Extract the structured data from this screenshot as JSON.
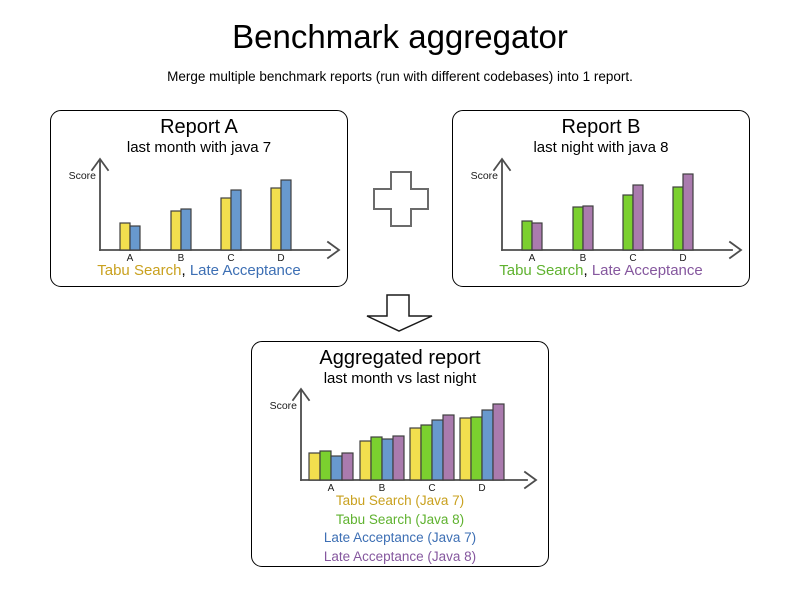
{
  "header": {
    "title": "Benchmark aggregator",
    "subtitle": "Merge multiple benchmark reports (run with different codebases) into 1 report."
  },
  "legend_separator": ", ",
  "icons": {
    "plus_icon": "plus",
    "merge_arrow_icon": "arrow-down"
  },
  "colors": {
    "axis": "#4d4d4d",
    "bar_border": "#3f3f3f",
    "box_border": "#000000",
    "plus_outline": "#6b6b6b",
    "arrow_outline": "#1a1a1a"
  },
  "chart_data": [
    {
      "id": "report-a",
      "type": "bar",
      "title": "Report A",
      "subtitle": "last month with java 7",
      "ylabel": "Score",
      "xlabel": "",
      "categories": [
        "A",
        "B",
        "C",
        "D"
      ],
      "ylim": [
        0,
        90
      ],
      "grid": false,
      "legend_position": "bottom",
      "series": [
        {
          "name": "Tabu Search",
          "color": "#F2DF4E",
          "label_color": "#C9A11F",
          "values": [
            27,
            39,
            52,
            62
          ]
        },
        {
          "name": "Late Acceptance",
          "color": "#6899CE",
          "label_color": "#3D6FB4",
          "values": [
            24,
            41,
            60,
            70
          ]
        }
      ]
    },
    {
      "id": "report-b",
      "type": "bar",
      "title": "Report B",
      "subtitle": "last night with java 8",
      "ylabel": "Score",
      "xlabel": "",
      "categories": [
        "A",
        "B",
        "C",
        "D"
      ],
      "ylim": [
        0,
        90
      ],
      "grid": false,
      "legend_position": "bottom",
      "series": [
        {
          "name": "Tabu Search",
          "color": "#7BD02F",
          "label_color": "#5FB22F",
          "values": [
            29,
            43,
            55,
            63
          ]
        },
        {
          "name": "Late Acceptance",
          "color": "#AA7BAE",
          "label_color": "#85579E",
          "values": [
            27,
            44,
            65,
            76
          ]
        }
      ]
    },
    {
      "id": "aggregated",
      "type": "bar",
      "title": "Aggregated report",
      "subtitle": "last month vs last night",
      "ylabel": "Score",
      "xlabel": "",
      "categories": [
        "A",
        "B",
        "C",
        "D"
      ],
      "ylim": [
        0,
        90
      ],
      "grid": false,
      "legend_position": "bottom",
      "series": [
        {
          "name": "Tabu Search (Java 7)",
          "color": "#F2DF4E",
          "label_color": "#C9A11F",
          "values": [
            27,
            39,
            52,
            62
          ]
        },
        {
          "name": "Tabu Search (Java 8)",
          "color": "#7BD02F",
          "label_color": "#5FB22F",
          "values": [
            29,
            43,
            55,
            63
          ]
        },
        {
          "name": "Late Acceptance (Java 7)",
          "color": "#6899CE",
          "label_color": "#3D6FB4",
          "values": [
            24,
            41,
            60,
            70
          ]
        },
        {
          "name": "Late Acceptance (Java 8)",
          "color": "#AA7BAE",
          "label_color": "#85579E",
          "values": [
            27,
            44,
            65,
            76
          ]
        }
      ]
    }
  ]
}
